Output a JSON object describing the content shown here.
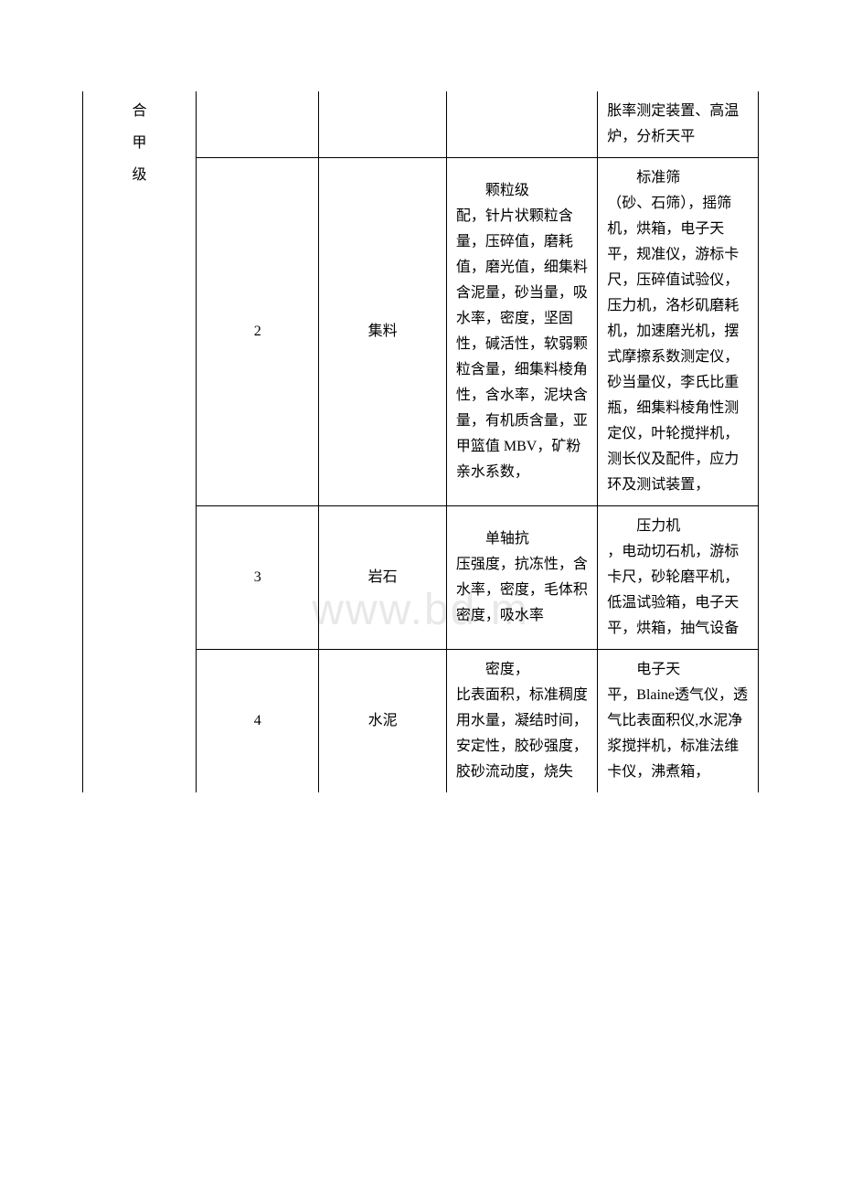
{
  "watermark": "www.bd        m",
  "table": {
    "label_col": "合\n甲\n级",
    "rows": [
      {
        "num": "",
        "name": "",
        "params": "",
        "equip_indent": "",
        "equip": "胀率测定装置、高温炉，分析天平"
      },
      {
        "num": "2",
        "name": "集料",
        "params_indent": "颗粒级",
        "params": "配，针片状颗粒含量，压碎值，磨耗值，磨光值，细集料含泥量，砂当量，吸水率，密度，坚固性，碱活性，软弱颗粒含量，细集料棱角性，含水率，泥块含量，有机质含量，亚甲篮值 MBV，矿粉亲水系数，",
        "equip_indent": "标准筛",
        "equip": "（砂、石筛），摇筛机，烘箱，电子天平，规准仪，游标卡尺，压碎值试验仪，压力机，洛杉矶磨耗机，加速磨光机，摆式摩擦系数测定仪，砂当量仪，李氏比重瓶，细集料棱角性测定仪，叶轮搅拌机，测长仪及配件，应力环及测试装置，"
      },
      {
        "num": "3",
        "name": "岩石",
        "params_indent": "单轴抗",
        "params": "压强度，抗冻性，含水率，密度，毛体积密度，吸水率",
        "equip_indent": "压力机",
        "equip": "，电动切石机，游标卡尺，砂轮磨平机，低温试验箱，电子天平，烘箱，抽气设备"
      },
      {
        "num": "4",
        "name": "水泥",
        "params_indent": "密度，",
        "params": "比表面积，标准稠度用水量，凝结时间，安定性，胶砂强度，胶砂流动度，烧失",
        "equip_indent": "电子天",
        "equip": "平，Blaine透气仪，透气比表面积仪,水泥净浆搅拌机，标准法维卡仪，沸煮箱，"
      }
    ]
  }
}
